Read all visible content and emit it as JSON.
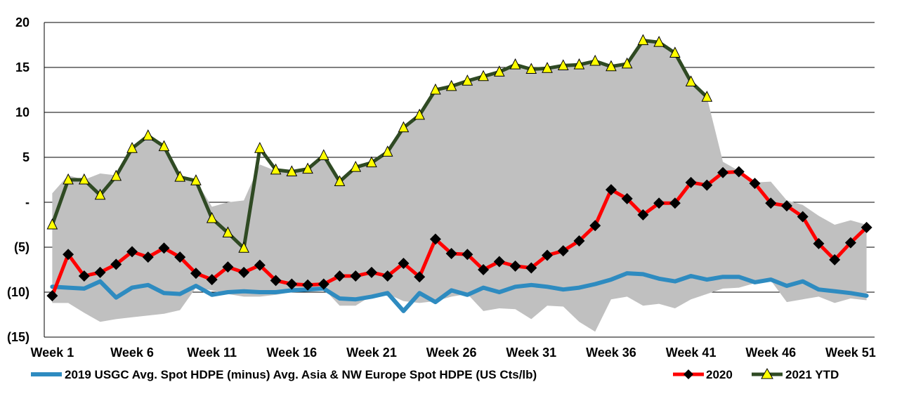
{
  "chart_data": {
    "type": "line",
    "ylim": [
      -15,
      20
    ],
    "yticks": [
      20,
      15,
      10,
      5,
      0,
      -5,
      -10,
      -15
    ],
    "ytick_labels": [
      "20",
      "15",
      "10",
      "5",
      "-",
      "(5)",
      "(10)",
      "(15)"
    ],
    "xtick_labels": [
      "Week 1",
      "Week 6",
      "Week 11",
      "Week 16",
      "Week 21",
      "Week 26",
      "Week 31",
      "Week 36",
      "Week 41",
      "Week 46",
      "Week 51"
    ],
    "xtick_weeks": [
      1,
      6,
      11,
      16,
      21,
      26,
      31,
      36,
      41,
      46,
      51
    ],
    "grid": "horizontal",
    "legend_position": "bottom",
    "band": {
      "weeks": [
        1,
        2,
        3,
        4,
        5,
        6,
        7,
        8,
        9,
        10,
        11,
        12,
        13,
        14,
        15,
        16,
        17,
        18,
        19,
        20,
        21,
        22,
        23,
        24,
        25,
        26,
        27,
        28,
        29,
        30,
        31,
        32,
        33,
        34,
        35,
        36,
        37,
        38,
        39,
        40,
        41,
        42,
        43,
        44,
        45,
        46,
        47,
        48,
        49,
        50,
        51,
        52
      ],
      "upper": [
        1.0,
        3.0,
        2.5,
        3.2,
        3.0,
        6.0,
        7.4,
        6.2,
        2.8,
        2.4,
        -0.5,
        0.0,
        0.2,
        4.2,
        3.5,
        3.4,
        3.7,
        5.2,
        2.3,
        3.9,
        4.4,
        5.6,
        8.3,
        9.7,
        12.5,
        12.9,
        13.5,
        14.0,
        14.5,
        15.3,
        14.8,
        14.9,
        15.2,
        15.3,
        15.7,
        15.1,
        15.4,
        18.0,
        17.8,
        16.6,
        13.4,
        11.7,
        4.5,
        3.5,
        2.2,
        2.3,
        0.2,
        -0.3,
        -1.5,
        -2.5,
        -2.0,
        -2.5
      ],
      "lower": [
        -11.2,
        -11.2,
        -12.3,
        -13.3,
        -13.0,
        -12.8,
        -12.6,
        -12.4,
        -12.0,
        -9.5,
        -9.8,
        -10.2,
        -10.5,
        -10.5,
        -10.3,
        -10.0,
        -9.9,
        -9.6,
        -11.5,
        -11.5,
        -10.4,
        -10.2,
        -11.0,
        -11.2,
        -11.0,
        -10.5,
        -10.2,
        -12.1,
        -11.8,
        -11.9,
        -13.0,
        -11.5,
        -11.6,
        -13.3,
        -14.4,
        -10.8,
        -10.5,
        -11.5,
        -11.3,
        -11.8,
        -10.8,
        -10.2,
        -9.6,
        -9.5,
        -9.0,
        -8.7,
        -11.1,
        -10.8,
        -10.5,
        -11.2,
        -10.7,
        -10.9
      ]
    },
    "series": [
      {
        "name": "2019 USGC Avg. Spot HDPE (minus) Avg. Asia & NW Europe Spot HDPE (US Cts/lb)",
        "color": "#2E8BC0",
        "marker": "none",
        "x": [
          1,
          2,
          3,
          4,
          5,
          6,
          7,
          8,
          9,
          10,
          11,
          12,
          13,
          14,
          15,
          16,
          17,
          18,
          19,
          20,
          21,
          22,
          23,
          24,
          25,
          26,
          27,
          28,
          29,
          30,
          31,
          32,
          33,
          34,
          35,
          36,
          37,
          38,
          39,
          40,
          41,
          42,
          43,
          44,
          45,
          46,
          47,
          48,
          49,
          50,
          51,
          52
        ],
        "values": [
          -9.4,
          -9.5,
          -9.6,
          -8.8,
          -10.6,
          -9.5,
          -9.2,
          -10.1,
          -10.2,
          -9.3,
          -10.3,
          -10.0,
          -9.9,
          -10.0,
          -10.0,
          -9.8,
          -9.7,
          -9.6,
          -10.7,
          -10.8,
          -10.5,
          -10.1,
          -12.1,
          -10.1,
          -11.1,
          -9.8,
          -10.3,
          -9.5,
          -10.0,
          -9.4,
          -9.2,
          -9.4,
          -9.7,
          -9.5,
          -9.1,
          -8.6,
          -7.9,
          -8.0,
          -8.5,
          -8.8,
          -8.2,
          -8.6,
          -8.3,
          -8.3,
          -8.9,
          -8.6,
          -9.3,
          -8.8,
          -9.7,
          -9.9,
          -10.1,
          -10.4
        ]
      },
      {
        "name": "2020",
        "color": "#FF0000",
        "marker": "diamond",
        "x": [
          1,
          2,
          3,
          4,
          5,
          6,
          7,
          8,
          9,
          10,
          11,
          12,
          13,
          14,
          15,
          16,
          17,
          18,
          19,
          20,
          21,
          22,
          23,
          24,
          25,
          26,
          27,
          28,
          29,
          30,
          31,
          32,
          33,
          34,
          35,
          36,
          37,
          38,
          39,
          40,
          41,
          42,
          43,
          44,
          45,
          46,
          47,
          48,
          49,
          50,
          51,
          52
        ],
        "values": [
          -10.4,
          -5.8,
          -8.2,
          -7.8,
          -6.9,
          -5.5,
          -6.1,
          -5.1,
          -6.1,
          -7.9,
          -8.6,
          -7.2,
          -7.8,
          -7.0,
          -8.7,
          -9.1,
          -9.2,
          -9.1,
          -8.2,
          -8.2,
          -7.8,
          -8.2,
          -6.8,
          -8.3,
          -4.1,
          -5.7,
          -5.8,
          -7.5,
          -6.6,
          -7.1,
          -7.3,
          -5.9,
          -5.4,
          -4.3,
          -2.6,
          1.4,
          0.4,
          -1.4,
          -0.1,
          -0.1,
          2.2,
          1.9,
          3.3,
          3.4,
          2.1,
          -0.1,
          -0.4,
          -1.6,
          -4.6,
          -6.4,
          -4.5,
          -2.8
        ]
      },
      {
        "name": "2021 YTD",
        "color": "#2F4A23",
        "marker": "triangle",
        "marker_color": "#FFFF00",
        "x": [
          1,
          2,
          3,
          4,
          5,
          6,
          7,
          8,
          9,
          10,
          11,
          12,
          13,
          14,
          15,
          16,
          17,
          18,
          19,
          20,
          21,
          22,
          23,
          24,
          25,
          26,
          27,
          28,
          29,
          30,
          31,
          32,
          33,
          34,
          35,
          36,
          37,
          38,
          39,
          40,
          41,
          42
        ],
        "values": [
          -2.5,
          2.5,
          2.5,
          0.8,
          2.9,
          6.0,
          7.4,
          6.2,
          2.8,
          2.4,
          -1.8,
          -3.4,
          -5.1,
          6.0,
          3.6,
          3.4,
          3.7,
          5.2,
          2.3,
          3.9,
          4.4,
          5.6,
          8.3,
          9.7,
          12.5,
          12.9,
          13.5,
          14.0,
          14.5,
          15.3,
          14.8,
          14.9,
          15.2,
          15.3,
          15.7,
          15.1,
          15.4,
          18.0,
          17.8,
          16.6,
          13.4,
          11.7
        ]
      }
    ]
  }
}
